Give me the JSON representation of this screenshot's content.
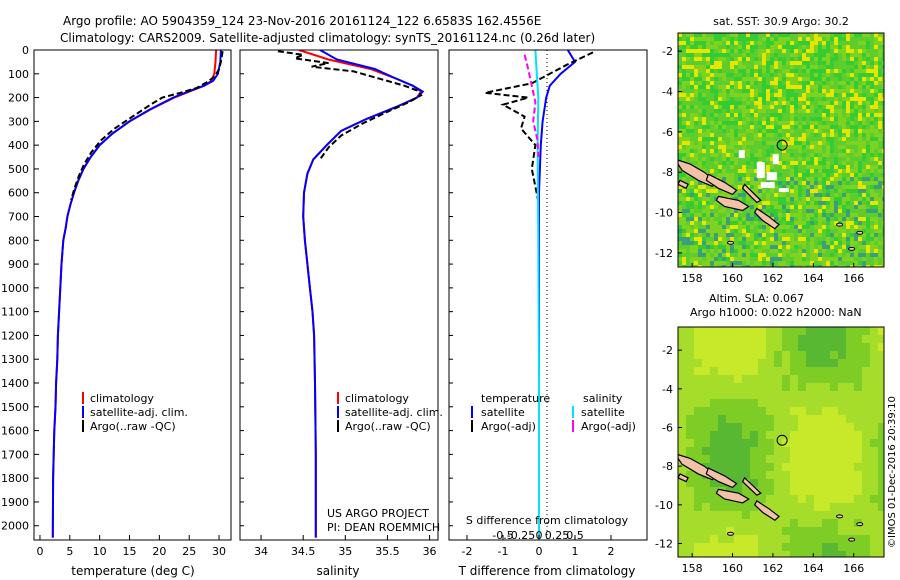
{
  "header": {
    "line1": "Argo profile: AO 5904359_124 23-Nov-2016 20161124_122 6.6583S 162.4556E",
    "line2": "Climatology: CARS2009. Satellite-adjusted climatology: synTS_20161124.nc (0.26d later)"
  },
  "credit": "©IMOS 01-Dec-2016 20:39:10",
  "chart_data": [
    {
      "id": "temperature",
      "type": "line",
      "xlabel": "temperature (deg C)",
      "ylabel": "",
      "xlim": [
        -1,
        32
      ],
      "ylim": [
        0,
        2060
      ],
      "y_inverted": true,
      "xticks": [
        0,
        5,
        10,
        15,
        20,
        25,
        30
      ],
      "yticks": [
        0,
        100,
        200,
        300,
        400,
        500,
        600,
        700,
        800,
        900,
        1000,
        1100,
        1200,
        1300,
        1400,
        1500,
        1600,
        1700,
        1800,
        1900,
        2000
      ],
      "legend": [
        "climatology",
        "satellite-adj. clim.",
        "Argo(..raw -QC)"
      ],
      "legend_placement": "lower-middle",
      "series": [
        {
          "name": "climatology",
          "color": "#ff0000",
          "style": "solid",
          "x": [
            29.5,
            29.4,
            29.2,
            28.7,
            27.5,
            25.5,
            22.5,
            18.5,
            15.0,
            12.2,
            10.0,
            8.5,
            7.3,
            6.4,
            5.7,
            5.1,
            4.6,
            4.3,
            3.9,
            3.6,
            3.4,
            3.2,
            3.0,
            2.9,
            2.7,
            2.6,
            2.4,
            2.3,
            2.2,
            2.15
          ],
          "y": [
            0,
            50,
            100,
            130,
            150,
            170,
            200,
            250,
            300,
            350,
            400,
            450,
            500,
            550,
            600,
            650,
            700,
            750,
            800,
            900,
            1000,
            1100,
            1200,
            1300,
            1400,
            1500,
            1600,
            1700,
            1800,
            2050
          ]
        },
        {
          "name": "satellite",
          "color": "#0000ff",
          "style": "solid",
          "x": [
            30.3,
            30.2,
            29.8,
            29.0,
            27.5,
            25.3,
            22.3,
            18.4,
            15.0,
            12.2,
            10.0,
            8.5,
            7.3,
            6.4,
            5.7,
            5.1,
            4.6,
            4.3,
            3.9,
            3.6,
            3.4,
            3.2,
            3.0,
            2.9,
            2.7,
            2.6,
            2.4,
            2.3,
            2.2,
            2.15
          ],
          "y": [
            0,
            50,
            100,
            130,
            150,
            170,
            200,
            250,
            300,
            350,
            400,
            450,
            500,
            550,
            600,
            650,
            700,
            750,
            800,
            900,
            1000,
            1100,
            1200,
            1300,
            1400,
            1500,
            1600,
            1700,
            1800,
            2050
          ]
        },
        {
          "name": "Argo",
          "color": "#000000",
          "style": "dashed",
          "x": [
            30.6,
            30.4,
            30.0,
            29.3,
            28.0,
            26.2,
            23.5,
            20.5,
            18.5,
            15.5,
            12.5,
            10.2,
            8.6,
            7.4,
            6.5,
            5.8,
            5.2
          ],
          "y": [
            5,
            40,
            80,
            110,
            135,
            160,
            180,
            200,
            230,
            280,
            330,
            380,
            430,
            480,
            530,
            580,
            630
          ]
        }
      ]
    },
    {
      "id": "salinity",
      "type": "line",
      "xlabel": "salinity",
      "ylabel": "",
      "xlim": [
        33.75,
        36.1
      ],
      "ylim": [
        0,
        2060
      ],
      "y_inverted": true,
      "xticks": [
        34,
        34.5,
        35,
        35.5,
        36
      ],
      "legend": [
        "climatology",
        "satellite-adj. clim.",
        "Argo(..raw -QC)"
      ],
      "legend_placement": "lower-middle",
      "series": [
        {
          "name": "climatology",
          "color": "#ff0000",
          "style": "solid",
          "x": [
            34.45,
            34.8,
            35.3,
            35.6,
            35.8,
            35.9,
            35.85,
            35.6,
            35.25,
            34.95,
            34.78,
            34.62,
            34.55,
            34.51,
            34.5,
            34.52,
            34.55,
            34.58,
            34.61,
            34.63,
            34.64,
            34.65,
            34.65
          ],
          "y": [
            0,
            40,
            80,
            120,
            150,
            175,
            200,
            240,
            290,
            340,
            400,
            460,
            520,
            600,
            700,
            800,
            900,
            1000,
            1100,
            1200,
            1400,
            1700,
            2050
          ]
        },
        {
          "name": "satellite",
          "color": "#0000ff",
          "style": "solid",
          "x": [
            34.7,
            34.9,
            35.35,
            35.6,
            35.8,
            35.92,
            35.85,
            35.6,
            35.25,
            34.95,
            34.78,
            34.62,
            34.55,
            34.51,
            34.5,
            34.52,
            34.55,
            34.58,
            34.61,
            34.63,
            34.64,
            34.65,
            34.65
          ],
          "y": [
            0,
            40,
            80,
            120,
            150,
            175,
            200,
            240,
            290,
            340,
            400,
            460,
            520,
            600,
            700,
            800,
            900,
            1000,
            1100,
            1200,
            1400,
            1700,
            2050
          ]
        },
        {
          "name": "Argo",
          "color": "#000000",
          "style": "dashed",
          "x": [
            34.2,
            34.5,
            34.4,
            34.8,
            34.6,
            35.1,
            35.3,
            35.5,
            35.7,
            35.85,
            35.9,
            35.75,
            35.5,
            35.2,
            34.95,
            34.8,
            34.7
          ],
          "y": [
            5,
            20,
            35,
            55,
            70,
            90,
            110,
            130,
            150,
            170,
            190,
            220,
            260,
            310,
            360,
            410,
            460
          ]
        }
      ]
    },
    {
      "id": "differences",
      "type": "line",
      "xlabel": "T difference from climatology",
      "xlabel_top": "S difference from climatology",
      "xlim": [
        -2.5,
        3.0
      ],
      "ylim": [
        0,
        2060
      ],
      "y_inverted": true,
      "xticks": [
        -2,
        -1,
        0,
        1,
        2
      ],
      "s_ticks": [
        -0.5,
        -0.25,
        0,
        0.25,
        0.5
      ],
      "s_tick_labels": [
        "-0.5",
        "-0.25",
        "0",
        "0.25",
        "0.5"
      ],
      "legend_temperature": {
        "title": "temperature",
        "items": [
          "satellite",
          "Argo(-adj)"
        ]
      },
      "legend_salinity": {
        "title": "salinity",
        "items": [
          "satellite",
          "Argo(-adj)"
        ]
      },
      "series": [
        {
          "name": "T satellite",
          "color": "#0000ff",
          "style": "solid",
          "x": [
            0.8,
            1.0,
            0.6,
            0.3,
            0.2,
            0.1,
            0.05,
            0.0,
            0.0,
            0.0
          ],
          "y": [
            0,
            50,
            100,
            150,
            200,
            300,
            400,
            600,
            1000,
            2050
          ]
        },
        {
          "name": "T Argo",
          "color": "#000000",
          "style": "dashed",
          "x": [
            1.5,
            0.8,
            0.3,
            -0.2,
            -1.5,
            -0.3,
            -1.0,
            -0.4,
            -0.5,
            -0.1,
            -0.2,
            0.0
          ],
          "y": [
            10,
            60,
            100,
            140,
            180,
            200,
            230,
            280,
            330,
            400,
            500,
            650
          ]
        },
        {
          "name": "S satellite",
          "color": "#00e5ff",
          "style": "solid",
          "x": [
            -0.05,
            -0.03,
            -0.01,
            -0.02,
            -0.01,
            0.0,
            0.0
          ],
          "y": [
            0,
            100,
            200,
            400,
            800,
            1400,
            2050
          ]
        },
        {
          "name": "S Argo",
          "color": "#ff00ff",
          "style": "dashed",
          "x": [
            -0.2,
            -0.15,
            -0.1,
            -0.05,
            -0.08,
            -0.02,
            -0.01
          ],
          "y": [
            20,
            80,
            150,
            220,
            300,
            380,
            450
          ]
        }
      ]
    },
    {
      "id": "sst-map",
      "type": "heatmap",
      "title": "sat. SST: 30.9 Argo: 30.2",
      "xlim": [
        157.3,
        167.5
      ],
      "ylim": [
        -12.7,
        -1.1
      ],
      "xticks": [
        158,
        160,
        162,
        164,
        166
      ],
      "yticks": [
        -2,
        -4,
        -6,
        -8,
        -10,
        -12
      ],
      "argo_position": {
        "lon": 162.4556,
        "lat": -6.6583
      }
    },
    {
      "id": "sla-map",
      "type": "heatmap",
      "title_line1": "Altim. SLA: 0.067",
      "title_line2": "Argo h1000: 0.022 h2000: NaN",
      "xlim": [
        157.3,
        167.5
      ],
      "ylim": [
        -12.7,
        -0.8
      ],
      "xticks": [
        158,
        160,
        162,
        164,
        166
      ],
      "yticks": [
        -2,
        -4,
        -6,
        -8,
        -10,
        -12
      ],
      "argo_position": {
        "lon": 162.4556,
        "lat": -6.6583
      }
    }
  ],
  "annotations": {
    "project_line1": "US ARGO PROJECT",
    "project_line2": "PI: DEAN ROEMMICH"
  }
}
